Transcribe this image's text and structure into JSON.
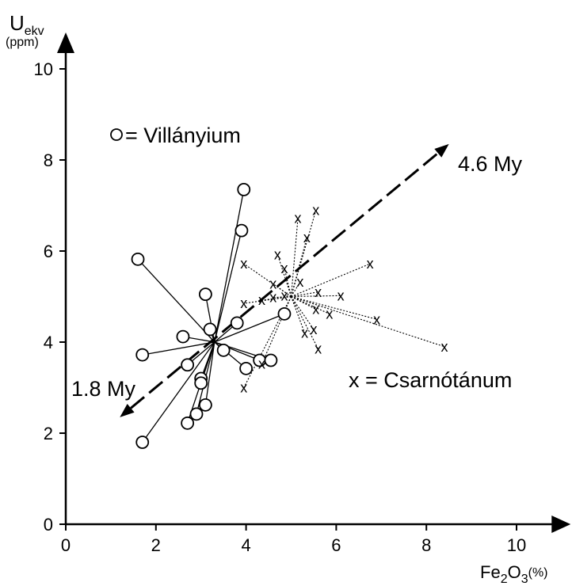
{
  "chart_data": {
    "type": "scatter",
    "title": "",
    "xlabel_main": "Fe",
    "xlabel_sub1": "2",
    "xlabel_mid": "O",
    "xlabel_sub2": "3",
    "xlabel_unit": "(%)",
    "ylabel_main": "U",
    "ylabel_sub": "ekv",
    "ylabel_unit": "(ppm)",
    "xlim": [
      0,
      11.2
    ],
    "ylim": [
      0,
      10.8
    ],
    "xticks": [
      0,
      2,
      4,
      6,
      8,
      10
    ],
    "yticks": [
      0,
      2,
      4,
      6,
      8,
      10
    ],
    "grid": false,
    "series": [
      {
        "name": "Villányium",
        "legend_label": "= Villányium",
        "marker": "circle",
        "connector": "solid",
        "center": [
          3.3,
          4.0
        ],
        "points": [
          [
            3.95,
            7.35
          ],
          [
            3.9,
            6.45
          ],
          [
            1.6,
            5.82
          ],
          [
            3.1,
            5.05
          ],
          [
            3.2,
            4.28
          ],
          [
            3.8,
            4.42
          ],
          [
            4.85,
            4.62
          ],
          [
            2.6,
            4.12
          ],
          [
            3.5,
            3.82
          ],
          [
            1.7,
            3.72
          ],
          [
            4.3,
            3.6
          ],
          [
            4.55,
            3.6
          ],
          [
            2.7,
            3.5
          ],
          [
            4.0,
            3.42
          ],
          [
            3.0,
            3.2
          ],
          [
            3.0,
            3.1
          ],
          [
            3.1,
            2.62
          ],
          [
            2.9,
            2.42
          ],
          [
            2.7,
            2.22
          ],
          [
            1.7,
            1.8
          ]
        ]
      },
      {
        "name": "Csarnótánum",
        "legend_label": "x = Csarnótánum",
        "marker": "x",
        "marker_glyph": "x",
        "connector": "dotted",
        "center": [
          5.0,
          5.0
        ],
        "points": [
          [
            5.55,
            6.9
          ],
          [
            5.15,
            6.72
          ],
          [
            5.35,
            6.3
          ],
          [
            4.7,
            5.92
          ],
          [
            3.95,
            5.72
          ],
          [
            4.85,
            5.62
          ],
          [
            6.75,
            5.72
          ],
          [
            4.6,
            5.28
          ],
          [
            5.2,
            5.32
          ],
          [
            4.85,
            5.02
          ],
          [
            5.6,
            5.1
          ],
          [
            6.1,
            5.02
          ],
          [
            4.6,
            4.98
          ],
          [
            4.35,
            4.92
          ],
          [
            3.95,
            4.85
          ],
          [
            5.55,
            4.72
          ],
          [
            5.85,
            4.62
          ],
          [
            6.9,
            4.5
          ],
          [
            5.5,
            4.28
          ],
          [
            5.3,
            4.2
          ],
          [
            5.6,
            3.85
          ],
          [
            8.4,
            3.9
          ],
          [
            4.35,
            3.52
          ],
          [
            3.95,
            3.0
          ]
        ]
      }
    ],
    "trend": {
      "from": [
        1.2,
        2.35
      ],
      "to": [
        8.5,
        8.35
      ],
      "label_start": "1.8 My",
      "label_end": "4.6 My"
    }
  }
}
